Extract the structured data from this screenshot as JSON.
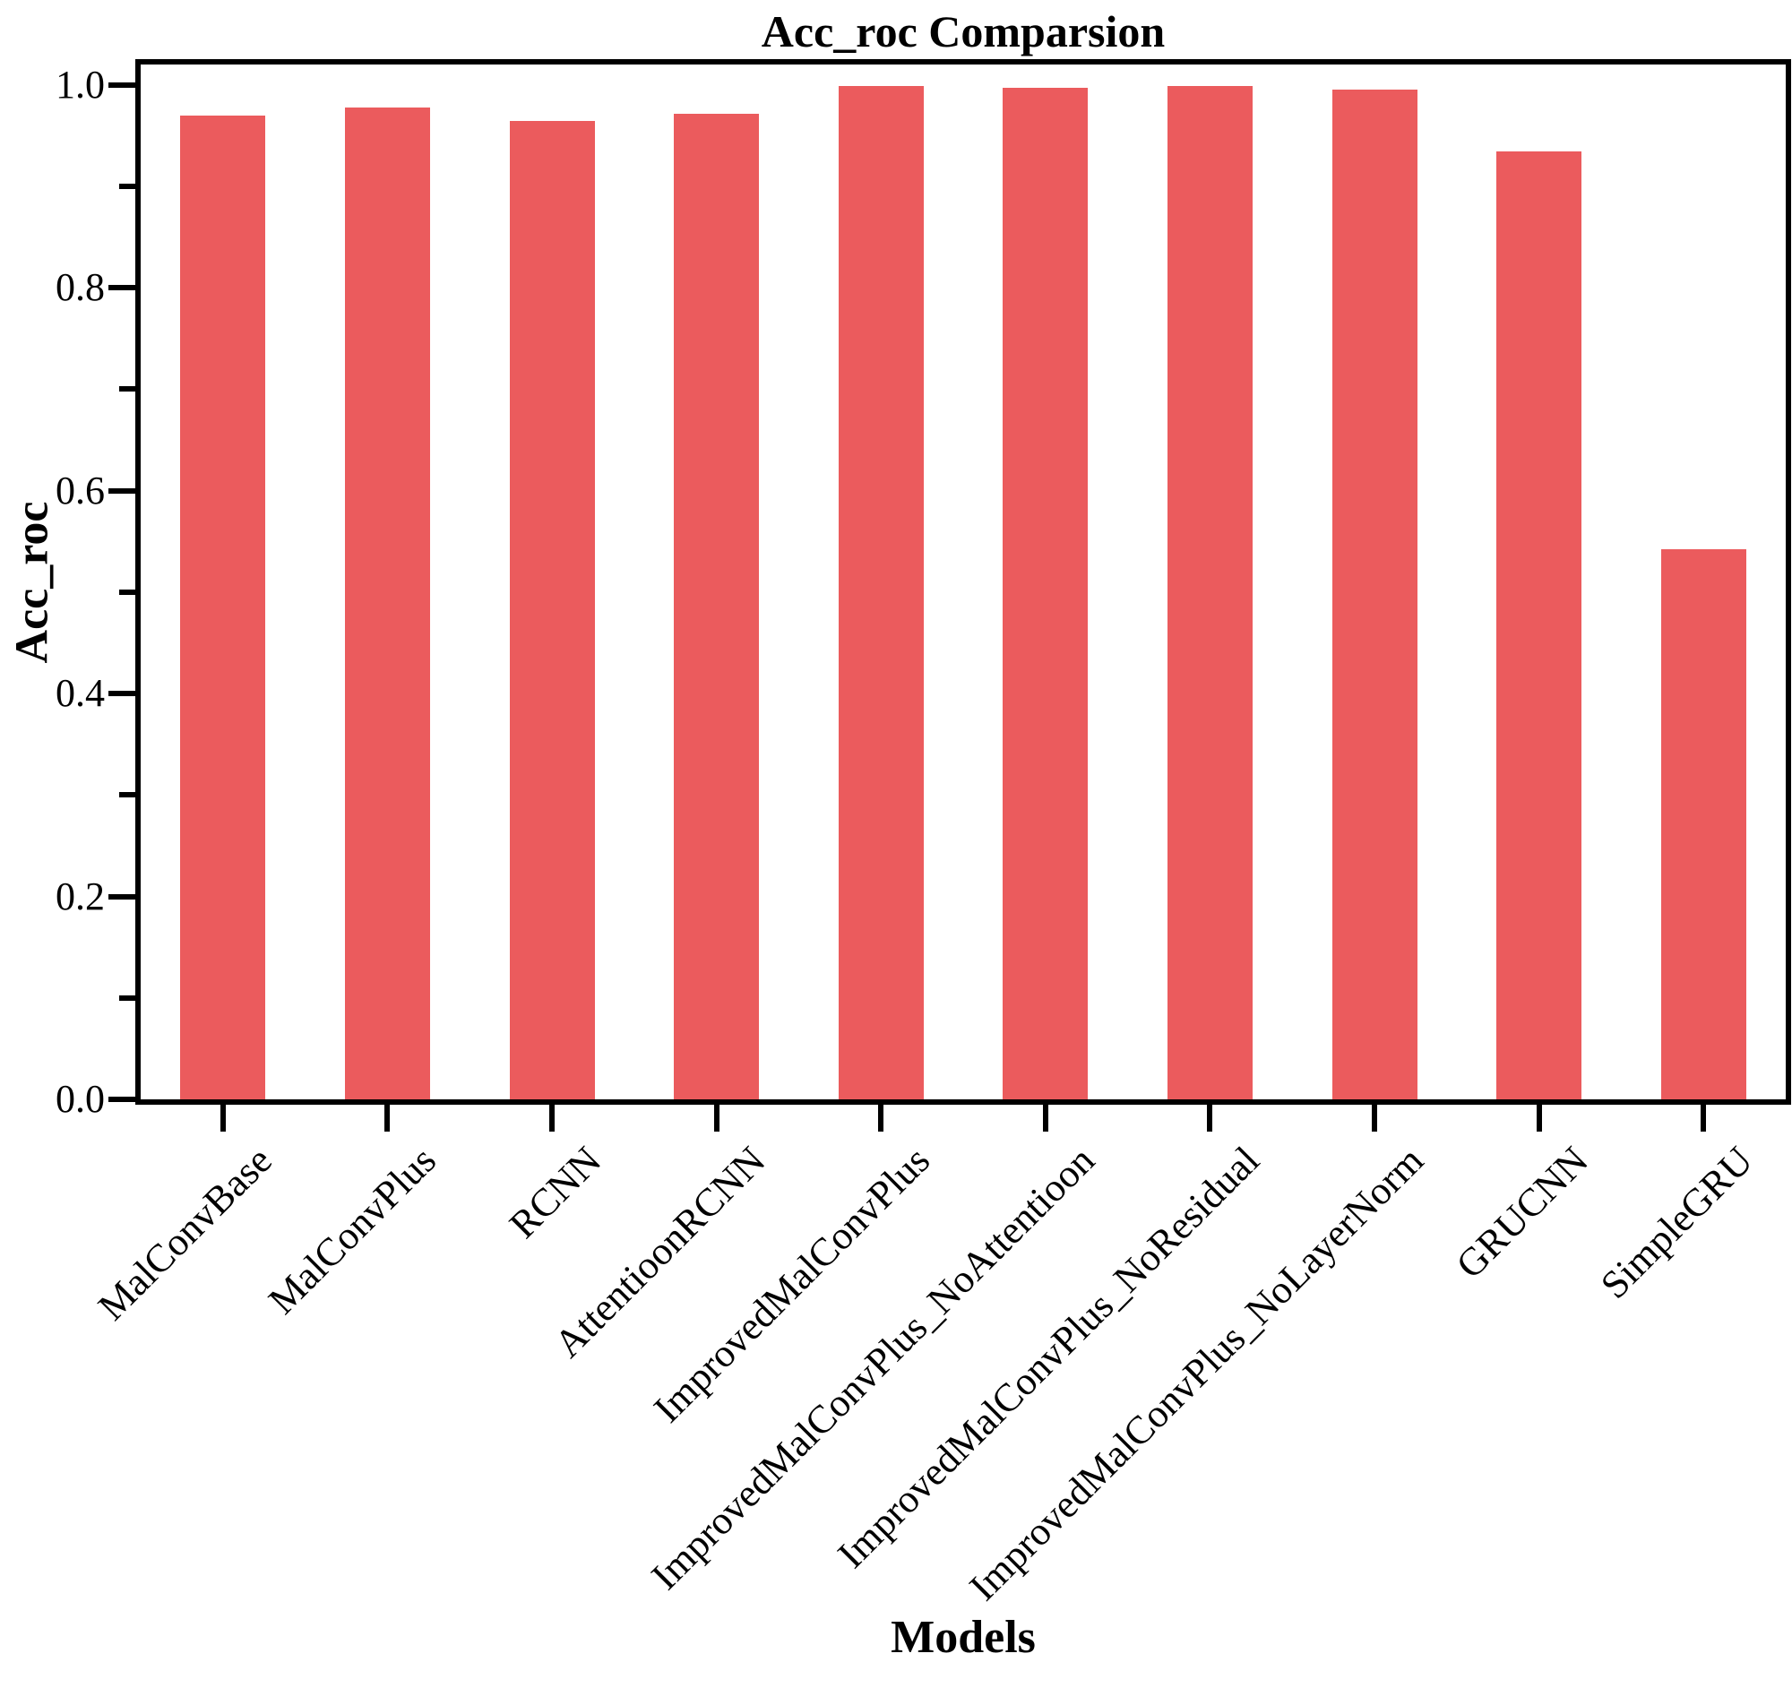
{
  "chart_data": {
    "type": "bar",
    "title": "Acc_roc Comparsion",
    "xlabel": "Models",
    "ylabel": "Acc_roc",
    "categories": [
      "MalConvBase",
      "MalConvPlus",
      "RCNN",
      "AttentioonRCNN",
      "ImprovedMalConvPlus",
      "ImprovedMalConvPlus_NoAttentioon",
      "ImprovedMalConvPlus_NoResidual",
      "ImprovedMalConvPlus_NoLayerNorm",
      "GRUCNN",
      "SimpleGRU"
    ],
    "values": [
      0.97,
      0.978,
      0.964,
      0.971,
      0.999,
      0.997,
      0.999,
      0.995,
      0.934,
      0.542
    ],
    "ylim": [
      0,
      1.02
    ],
    "yticks": [
      {
        "value": 0.0,
        "label": "0.0"
      },
      {
        "value": 0.2,
        "label": "0.2"
      },
      {
        "value": 0.4,
        "label": "0.4"
      },
      {
        "value": 0.6,
        "label": "0.6"
      },
      {
        "value": 0.8,
        "label": "0.8"
      },
      {
        "value": 1.0,
        "label": "1.0"
      }
    ],
    "minor_yticks": [
      0.1,
      0.3,
      0.5,
      0.7,
      0.9
    ],
    "bar_color": "#EB5B5D",
    "axis_color": "#000000",
    "background_color": "#FFFFFF",
    "grid": false,
    "x_tick_rotation_deg": 45,
    "bar_width_fraction": 0.52
  }
}
